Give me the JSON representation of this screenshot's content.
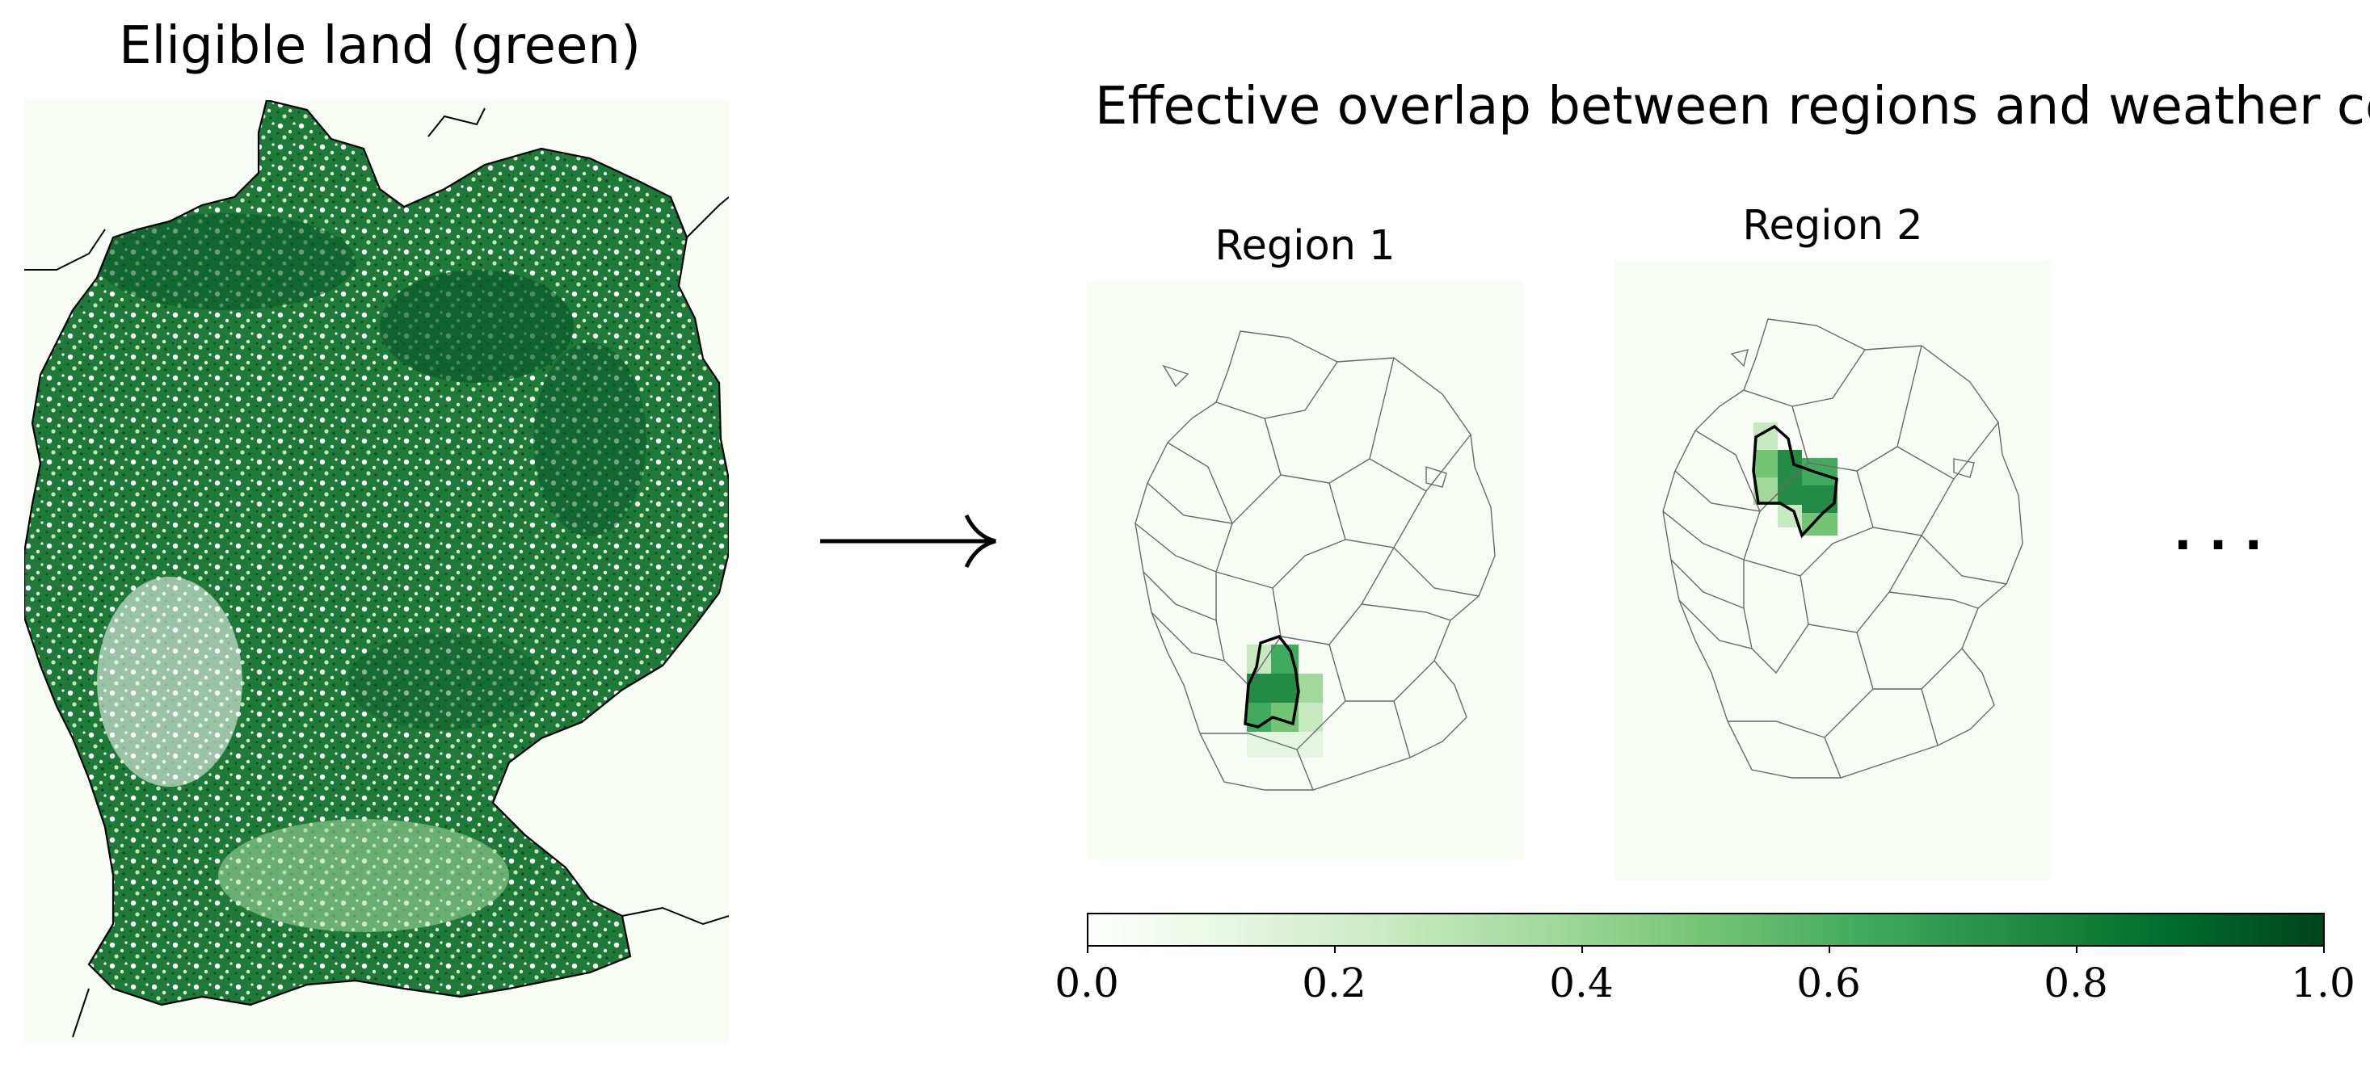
{
  "left_panel": {
    "title": "Eligible land (green)"
  },
  "right_panel": {
    "title": "Effective overlap between regions and weather cells",
    "maps": [
      {
        "label": "Region 1"
      },
      {
        "label": "Region 2"
      }
    ],
    "ellipsis": "· · ·"
  },
  "arrow": {
    "glyph": "→"
  },
  "colorbar": {
    "ticks": [
      "0.0",
      "0.2",
      "0.4",
      "0.6",
      "0.8",
      "1.0"
    ],
    "tick_values": [
      0.0,
      0.2,
      0.4,
      0.6,
      0.8,
      1.0
    ],
    "range": [
      0.0,
      1.0
    ],
    "colormap_stops": [
      "#f7fcf5",
      "#e5f5e0",
      "#c7e9c0",
      "#a1d99b",
      "#74c476",
      "#41ab5d",
      "#238b45",
      "#006d2c",
      "#00441b"
    ]
  },
  "colors": {
    "background_land": "#f7fcf5",
    "eligible_dark": "#0a5a2a",
    "eligible_mid": "#3d9a52",
    "eligible_light": "#a6dba0",
    "outline": "#000000"
  }
}
